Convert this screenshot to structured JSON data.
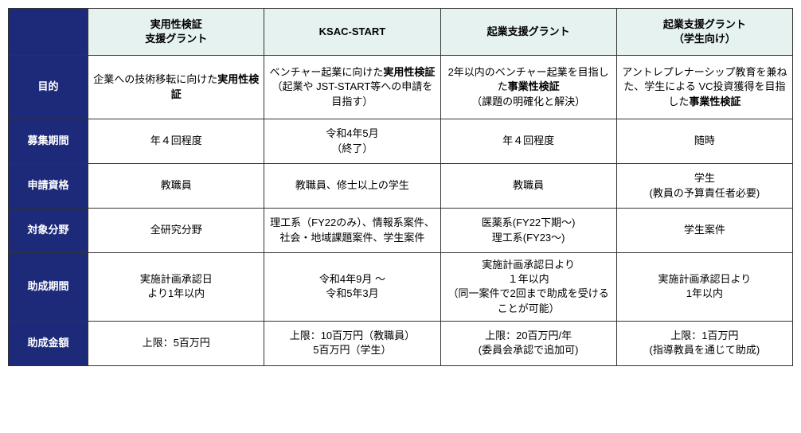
{
  "columns": {
    "c1": "実用性検証\n支援グラント",
    "c2": "KSAC-START",
    "c3": "起業支援グラント",
    "c4": "起業支援グラント\n（学生向け）"
  },
  "rows": {
    "purpose": {
      "label": "目的",
      "c1_pre": "企業への技術移転に向けた",
      "c1_bold": "実用性検証",
      "c2_pre": "ベンチャー起業に向けた",
      "c2_bold": "実用性検証",
      "c2_post": "（起業や JST-START等への申請を目指す）",
      "c3_pre": "2年以内のベンチャー起業を目指した",
      "c3_bold": "事業性検証",
      "c3_post": "（課題の明確化と解決）",
      "c4_pre": "アントレプレナーシップ教育を兼ねた、学生による VC投資獲得を目指した",
      "c4_bold": "事業性検証"
    },
    "period": {
      "label": "募集期間",
      "c1": "年４回程度",
      "c2": "令和4年5月\n（終了）",
      "c3": "年４回程度",
      "c4": "随時"
    },
    "elig": {
      "label": "申請資格",
      "c1": "教職員",
      "c2": "教職員、修士以上の学生",
      "c3": "教職員",
      "c4": "学生\n(教員の予算責任者必要)"
    },
    "field": {
      "label": "対象分野",
      "c1": "全研究分野",
      "c2": "理工系（FY22のみ）、情報系案件、社会・地域課題案件、学生案件",
      "c3": "医薬系(FY22下期～)\n理工系(FY23～)",
      "c4": "学生案件"
    },
    "support_period": {
      "label": "助成期間",
      "c1": "実施計画承認日\nより1年以内",
      "c2": "令和4年9月 ～\n令和5年3月",
      "c3": "実施計画承認日より\n１年以内\n（同一案件で2回まで助成を受けることが可能）",
      "c4": "実施計画承認日より\n1年以内"
    },
    "amount": {
      "label": "助成金額",
      "c1": "上限：5百万円",
      "c2": "上限：10百万円（教職員）\n5百万円（学生）",
      "c3": "上限：20百万円/年\n(委員会承認で追加可)",
      "c4": "上限：1百万円\n(指導教員を通じて助成)"
    }
  }
}
